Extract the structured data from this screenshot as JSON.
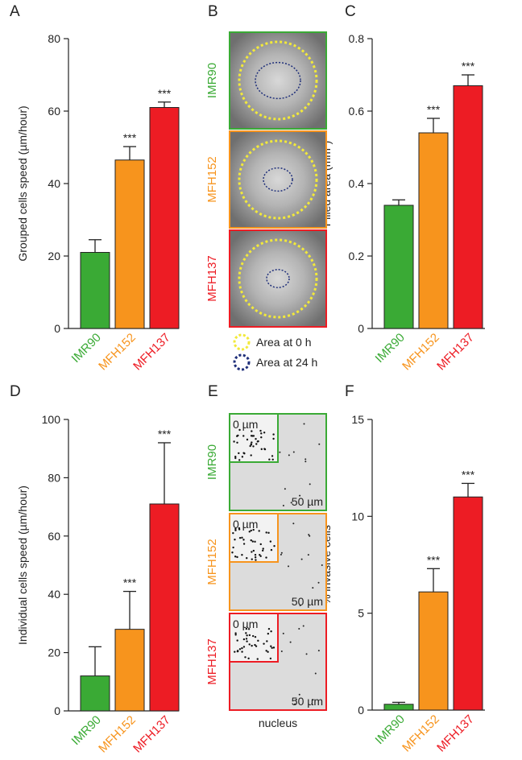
{
  "chart_data": [
    {
      "type": "bar",
      "panel": "A",
      "ylabel": "Grouped cells speed (µm/hour)",
      "categories": [
        "IMR90",
        "MFH152",
        "MFH137"
      ],
      "colors": [
        "#3aaa35",
        "#f7941d",
        "#ed1c24"
      ],
      "values": [
        21,
        46.5,
        61
      ],
      "errors": [
        3.5,
        3.7,
        1.5
      ],
      "annotations": [
        null,
        "***",
        "***"
      ],
      "ylim": [
        0,
        80
      ],
      "yticks": [
        0,
        20,
        40,
        60,
        80
      ]
    },
    {
      "type": "bar",
      "panel": "C",
      "ylabel": "Filled area (mm²)",
      "categories": [
        "IMR90",
        "MFH152",
        "MFH137"
      ],
      "colors": [
        "#3aaa35",
        "#f7941d",
        "#ed1c24"
      ],
      "values": [
        0.34,
        0.54,
        0.67
      ],
      "errors": [
        0.015,
        0.04,
        0.03
      ],
      "annotations": [
        null,
        "***",
        "***"
      ],
      "ylim": [
        0,
        0.8
      ],
      "yticks": [
        0,
        0.2,
        0.4,
        0.6,
        0.8
      ]
    },
    {
      "type": "bar",
      "panel": "D",
      "ylabel": "Individual cells speed (µm/hour)",
      "categories": [
        "IMR90",
        "MFH152",
        "MFH137"
      ],
      "colors": [
        "#3aaa35",
        "#f7941d",
        "#ed1c24"
      ],
      "values": [
        12,
        28,
        71
      ],
      "errors": [
        10,
        13,
        21
      ],
      "annotations": [
        null,
        "***",
        "***"
      ],
      "ylim": [
        0,
        100
      ],
      "yticks": [
        0,
        20,
        40,
        60,
        80,
        100
      ]
    },
    {
      "type": "bar",
      "panel": "F",
      "ylabel": "% invasive cells",
      "categories": [
        "IMR90",
        "MFH152",
        "MFH137"
      ],
      "colors": [
        "#3aaa35",
        "#f7941d",
        "#ed1c24"
      ],
      "values": [
        0.3,
        6.1,
        11
      ],
      "errors": [
        0.1,
        1.2,
        0.7
      ],
      "annotations": [
        null,
        "***",
        "***"
      ],
      "ylim": [
        0,
        15
      ],
      "yticks": [
        0,
        5,
        10,
        15
      ]
    }
  ],
  "image_panels": [
    {
      "panel": "B",
      "rows": [
        {
          "label": "IMR90",
          "color": "#3aaa35"
        },
        {
          "label": "MFH152",
          "color": "#f7941d"
        },
        {
          "label": "MFH137",
          "color": "#ed1c24"
        }
      ],
      "legend": [
        {
          "label": "Area at 0 h",
          "color": "#f2e93a"
        },
        {
          "label": "Area at 24 h",
          "color": "#1f2f7a"
        }
      ]
    },
    {
      "panel": "E",
      "rows": [
        {
          "label": "IMR90",
          "color": "#3aaa35",
          "inset_label": "0 µm",
          "scale_label": "50 µm"
        },
        {
          "label": "MFH152",
          "color": "#f7941d",
          "inset_label": "0 µm",
          "scale_label": "50 µm"
        },
        {
          "label": "MFH137",
          "color": "#ed1c24",
          "inset_label": "0 µm",
          "scale_label": "50 µm"
        }
      ],
      "caption": "nucleus"
    }
  ]
}
